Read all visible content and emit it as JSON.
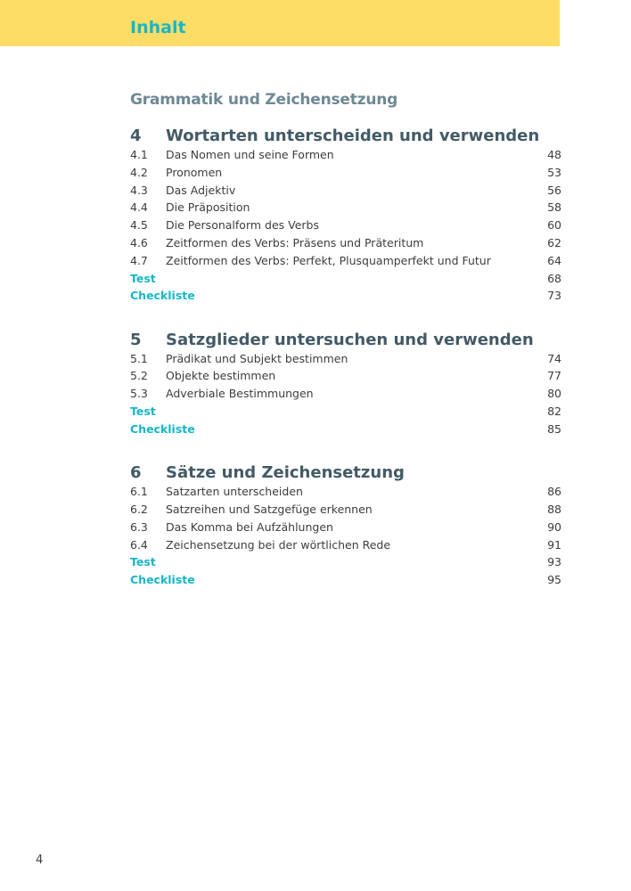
{
  "header": {
    "title": "Inhalt"
  },
  "section_title": "Grammatik und Zeichensetzung",
  "colors": {
    "band": "#fedd66",
    "accent": "#17b6c8",
    "section": "#6d8994",
    "chapter": "#435a66"
  },
  "chapters": [
    {
      "number": "4",
      "title": "Wortarten unterscheiden und verwenden",
      "items": [
        {
          "number": "4.1",
          "title": "Das Nomen und seine Formen",
          "page": "48"
        },
        {
          "number": "4.2",
          "title": "Pronomen",
          "page": "53"
        },
        {
          "number": "4.3",
          "title": "Das Adjektiv",
          "page": "56"
        },
        {
          "number": "4.4",
          "title": "Die Präposition",
          "page": "58"
        },
        {
          "number": "4.5",
          "title": "Die Personalform des Verbs",
          "page": "60"
        },
        {
          "number": "4.6",
          "title": "Zeitformen des Verbs: Präsens und Präteritum",
          "page": "62"
        },
        {
          "number": "4.7",
          "title": "Zeitformen des Verbs: Perfekt, Plusquamperfekt und Futur",
          "page": "64"
        }
      ],
      "extras": [
        {
          "label": "Test",
          "page": "68"
        },
        {
          "label": "Checkliste",
          "page": "73"
        }
      ]
    },
    {
      "number": "5",
      "title": "Satzglieder untersuchen und verwenden",
      "items": [
        {
          "number": "5.1",
          "title": "Prädikat und Subjekt bestimmen",
          "page": "74"
        },
        {
          "number": "5.2",
          "title": "Objekte bestimmen",
          "page": "77"
        },
        {
          "number": "5.3",
          "title": "Adverbiale Bestimmungen",
          "page": "80"
        }
      ],
      "extras": [
        {
          "label": "Test",
          "page": "82"
        },
        {
          "label": "Checkliste",
          "page": "85"
        }
      ]
    },
    {
      "number": "6",
      "title": "Sätze und Zeichensetzung",
      "items": [
        {
          "number": "6.1",
          "title": "Satzarten unterscheiden",
          "page": "86"
        },
        {
          "number": "6.2",
          "title": "Satzreihen und Satzgefüge erkennen",
          "page": "88"
        },
        {
          "number": "6.3",
          "title": "Das Komma bei Aufzählungen",
          "page": "90"
        },
        {
          "number": "6.4",
          "title": "Zeichensetzung bei der wörtlichen Rede",
          "page": "91"
        }
      ],
      "extras": [
        {
          "label": "Test",
          "page": "93"
        },
        {
          "label": "Checkliste",
          "page": "95"
        }
      ]
    }
  ],
  "page_number": "4"
}
